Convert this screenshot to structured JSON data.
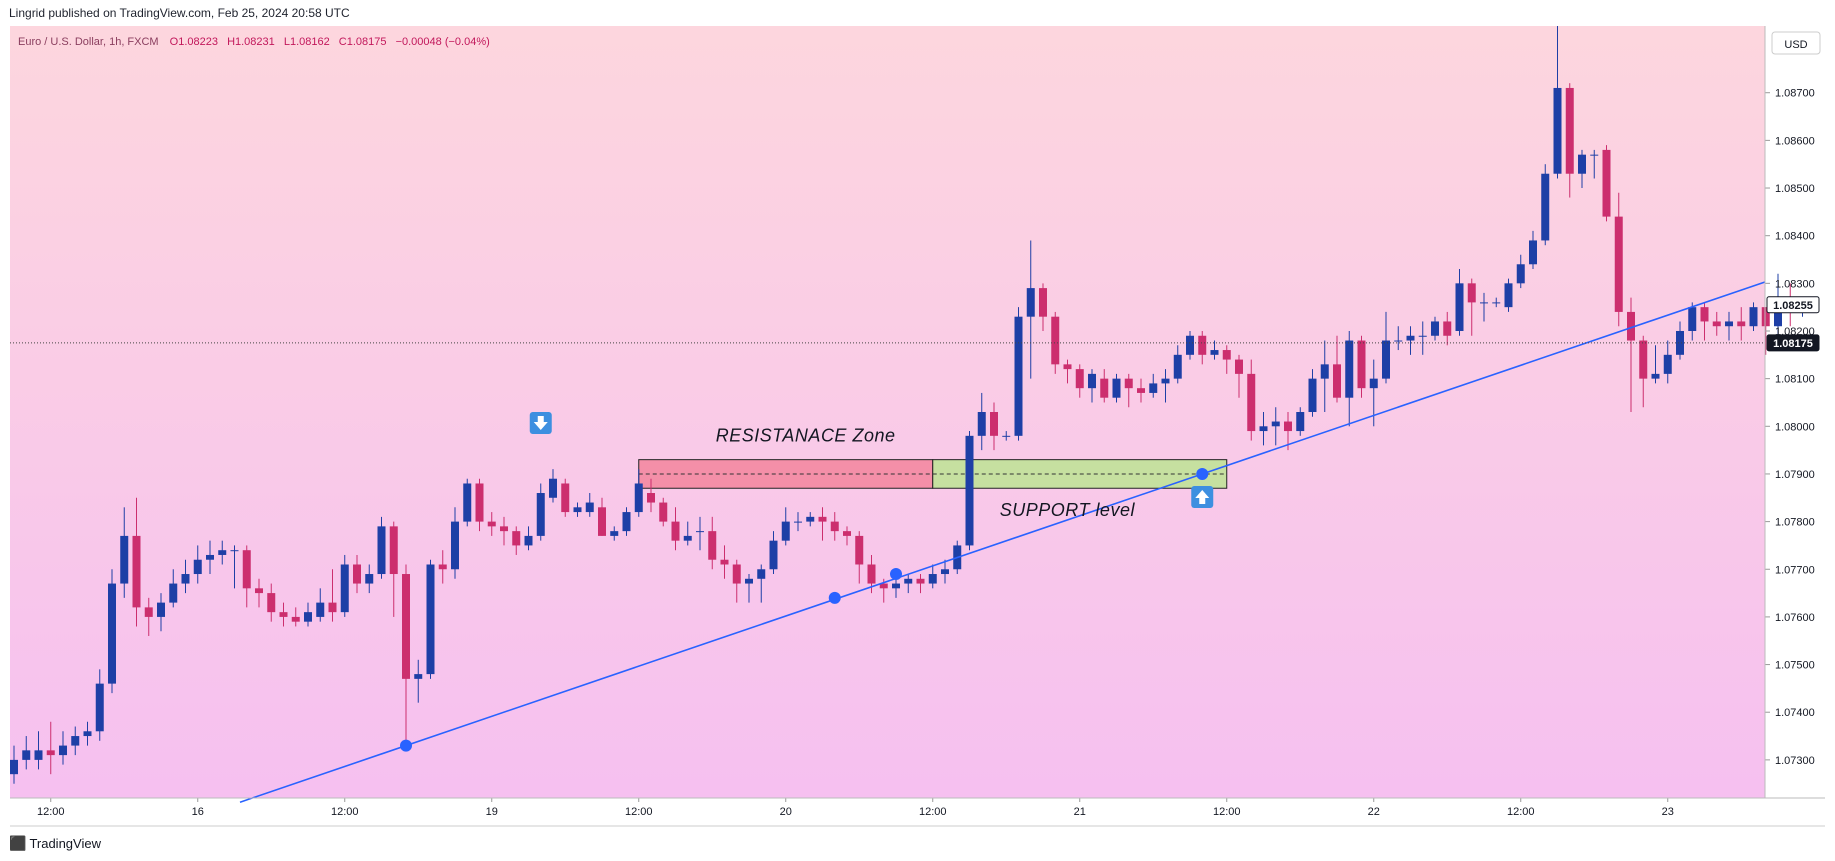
{
  "publisher": "Lingrid published on TradingView.com, Feb 25, 2024 20:58 UTC",
  "symbol_line": {
    "name": "Euro / U.S. Dollar, 1h, FXCM",
    "o": "O1.08223",
    "h": "H1.08231",
    "l": "L1.08162",
    "c": "C1.08175",
    "chg": "−0.00048 (−0.04%)"
  },
  "currency": "USD",
  "brand": "TradingView",
  "colors": {
    "up": "#1e3fa6",
    "down": "#cc2e6e",
    "trend": "#2962ff",
    "resistance_fill": "#f48fa8",
    "support_fill": "#c6e0a0",
    "bg_top": "#fdd6de",
    "bg_bottom": "#f6c0f0"
  },
  "chart_data": {
    "type": "candlestick",
    "ylim": [
      1.0722,
      1.0884
    ],
    "y_ticks": [
      "1.07300",
      "1.07400",
      "1.07500",
      "1.07600",
      "1.07700",
      "1.07800",
      "1.07900",
      "1.08000",
      "1.08100",
      "1.08200",
      "1.08300",
      "1.08400",
      "1.08500",
      "1.08600",
      "1.08700"
    ],
    "x_ticks": [
      "12:00",
      "16",
      "12:00",
      "19",
      "12:00",
      "20",
      "12:00",
      "21",
      "12:00",
      "22",
      "12:00",
      "23"
    ],
    "price_labels": [
      {
        "value": 1.08255,
        "text": "1.08255",
        "style": "outline"
      },
      {
        "value": 1.08175,
        "text": "1.08175",
        "style": "filled"
      }
    ],
    "current_price": 1.08175,
    "candles": [
      [
        1.0727,
        1.073,
        1.0725,
        1.0733
      ],
      [
        1.073,
        1.0732,
        1.0728,
        1.0735
      ],
      [
        1.073,
        1.0732,
        1.0728,
        1.0736
      ],
      [
        1.0732,
        1.0731,
        1.0727,
        1.0738
      ],
      [
        1.0731,
        1.0733,
        1.0729,
        1.0736
      ],
      [
        1.0733,
        1.0735,
        1.0731,
        1.0737
      ],
      [
        1.0735,
        1.0736,
        1.0733,
        1.0738
      ],
      [
        1.0736,
        1.0746,
        1.0734,
        1.0749
      ],
      [
        1.0746,
        1.0767,
        1.0744,
        1.077
      ],
      [
        1.0767,
        1.0777,
        1.0764,
        1.0783
      ],
      [
        1.0777,
        1.0762,
        1.0758,
        1.0785
      ],
      [
        1.0762,
        1.076,
        1.0756,
        1.0764
      ],
      [
        1.076,
        1.0763,
        1.0757,
        1.0765
      ],
      [
        1.0763,
        1.0767,
        1.0762,
        1.077
      ],
      [
        1.0767,
        1.0769,
        1.0765,
        1.0772
      ],
      [
        1.0769,
        1.0772,
        1.0767,
        1.0775
      ],
      [
        1.0772,
        1.0773,
        1.0769,
        1.0776
      ],
      [
        1.0773,
        1.0774,
        1.0771,
        1.0776
      ],
      [
        1.0774,
        1.0774,
        1.0766,
        1.0775
      ],
      [
        1.0774,
        1.0766,
        1.0762,
        1.0775
      ],
      [
        1.0766,
        1.0765,
        1.0762,
        1.0768
      ],
      [
        1.0765,
        1.0761,
        1.0759,
        1.0767
      ],
      [
        1.0761,
        1.076,
        1.0758,
        1.0763
      ],
      [
        1.076,
        1.0759,
        1.0758,
        1.0762
      ],
      [
        1.0759,
        1.0761,
        1.0758,
        1.0763
      ],
      [
        1.076,
        1.0763,
        1.0759,
        1.0766
      ],
      [
        1.0763,
        1.0761,
        1.0759,
        1.077
      ],
      [
        1.0761,
        1.0771,
        1.076,
        1.0773
      ],
      [
        1.0771,
        1.0767,
        1.0765,
        1.0773
      ],
      [
        1.0767,
        1.0769,
        1.0765,
        1.0771
      ],
      [
        1.0769,
        1.0779,
        1.0768,
        1.0781
      ],
      [
        1.0779,
        1.0769,
        1.076,
        1.078
      ],
      [
        1.0769,
        1.0747,
        1.0733,
        1.0771
      ],
      [
        1.0747,
        1.0748,
        1.0742,
        1.0751
      ],
      [
        1.0748,
        1.0771,
        1.0747,
        1.0772
      ],
      [
        1.0771,
        1.077,
        1.0767,
        1.0774
      ],
      [
        1.077,
        1.078,
        1.0768,
        1.0783
      ],
      [
        1.078,
        1.0788,
        1.0779,
        1.0789
      ],
      [
        1.0788,
        1.078,
        1.0778,
        1.0789
      ],
      [
        1.078,
        1.0779,
        1.0777,
        1.0782
      ],
      [
        1.0779,
        1.0778,
        1.0775,
        1.0781
      ],
      [
        1.0778,
        1.0775,
        1.0773,
        1.0779
      ],
      [
        1.0775,
        1.0777,
        1.0774,
        1.0779
      ],
      [
        1.0777,
        1.0786,
        1.0776,
        1.0788
      ],
      [
        1.0785,
        1.0789,
        1.0784,
        1.0791
      ],
      [
        1.0788,
        1.0782,
        1.0781,
        1.0789
      ],
      [
        1.0782,
        1.0783,
        1.0781,
        1.0784
      ],
      [
        1.0782,
        1.0784,
        1.0781,
        1.0786
      ],
      [
        1.0783,
        1.0777,
        1.0777,
        1.0785
      ],
      [
        1.0777,
        1.0778,
        1.0776,
        1.0779
      ],
      [
        1.0778,
        1.0782,
        1.0777,
        1.0783
      ],
      [
        1.0782,
        1.0788,
        1.0781,
        1.0791
      ],
      [
        1.0786,
        1.0784,
        1.0782,
        1.0789
      ],
      [
        1.0784,
        1.078,
        1.0779,
        1.0785
      ],
      [
        1.078,
        1.0776,
        1.0774,
        1.0783
      ],
      [
        1.0776,
        1.0777,
        1.0775,
        1.078
      ],
      [
        1.0778,
        1.0778,
        1.0774,
        1.0781
      ],
      [
        1.0778,
        1.0772,
        1.077,
        1.0781
      ],
      [
        1.0772,
        1.0771,
        1.0768,
        1.0775
      ],
      [
        1.0771,
        1.0767,
        1.0763,
        1.0772
      ],
      [
        1.0767,
        1.0768,
        1.0763,
        1.0769
      ],
      [
        1.0768,
        1.077,
        1.0763,
        1.0771
      ],
      [
        1.077,
        1.0776,
        1.0769,
        1.0778
      ],
      [
        1.0776,
        1.078,
        1.0775,
        1.0783
      ],
      [
        1.078,
        1.078,
        1.0778,
        1.0782
      ],
      [
        1.078,
        1.0781,
        1.0779,
        1.0782
      ],
      [
        1.0781,
        1.078,
        1.0776,
        1.0783
      ],
      [
        1.078,
        1.0778,
        1.0776,
        1.0782
      ],
      [
        1.0778,
        1.0777,
        1.0775,
        1.0779
      ],
      [
        1.0777,
        1.0771,
        1.0767,
        1.0778
      ],
      [
        1.0771,
        1.0767,
        1.0765,
        1.0773
      ],
      [
        1.0767,
        1.0766,
        1.0763,
        1.0768
      ],
      [
        1.0766,
        1.0767,
        1.0764,
        1.0768
      ],
      [
        1.0767,
        1.0768,
        1.0765,
        1.0769
      ],
      [
        1.0768,
        1.0767,
        1.0765,
        1.0769
      ],
      [
        1.0767,
        1.0769,
        1.0766,
        1.0771
      ],
      [
        1.0769,
        1.077,
        1.0767,
        1.0772
      ],
      [
        1.077,
        1.0775,
        1.0769,
        1.0776
      ],
      [
        1.0775,
        1.0798,
        1.0774,
        1.0799
      ],
      [
        1.0798,
        1.0803,
        1.0795,
        1.0807
      ],
      [
        1.0803,
        1.0798,
        1.0795,
        1.0805
      ],
      [
        1.0798,
        1.0798,
        1.0797,
        1.0799
      ],
      [
        1.0798,
        1.0823,
        1.0797,
        1.0825
      ],
      [
        1.0823,
        1.0829,
        1.081,
        1.0839
      ],
      [
        1.0829,
        1.0823,
        1.082,
        1.083
      ],
      [
        1.0823,
        1.0813,
        1.0811,
        1.0824
      ],
      [
        1.0813,
        1.0812,
        1.0809,
        1.0814
      ],
      [
        1.0812,
        1.0808,
        1.0806,
        1.0813
      ],
      [
        1.0808,
        1.0811,
        1.0805,
        1.0812
      ],
      [
        1.081,
        1.0806,
        1.0805,
        1.0812
      ],
      [
        1.0806,
        1.081,
        1.0805,
        1.0811
      ],
      [
        1.081,
        1.0808,
        1.0804,
        1.0811
      ],
      [
        1.0808,
        1.0807,
        1.0805,
        1.081
      ],
      [
        1.0807,
        1.0809,
        1.0806,
        1.0811
      ],
      [
        1.0809,
        1.081,
        1.0805,
        1.0812
      ],
      [
        1.081,
        1.0815,
        1.0809,
        1.0817
      ],
      [
        1.0815,
        1.0819,
        1.0814,
        1.082
      ],
      [
        1.0819,
        1.0815,
        1.0813,
        1.082
      ],
      [
        1.0815,
        1.0816,
        1.0814,
        1.0818
      ],
      [
        1.0816,
        1.0814,
        1.0811,
        1.0817
      ],
      [
        1.0814,
        1.0811,
        1.0806,
        1.0815
      ],
      [
        1.0811,
        1.0799,
        1.0797,
        1.0814
      ],
      [
        1.0799,
        1.08,
        1.0796,
        1.0803
      ],
      [
        1.08,
        1.0801,
        1.0796,
        1.0804
      ],
      [
        1.0801,
        1.0799,
        1.0795,
        1.0803
      ],
      [
        1.0799,
        1.0803,
        1.0798,
        1.0804
      ],
      [
        1.0803,
        1.081,
        1.0802,
        1.0812
      ],
      [
        1.081,
        1.0813,
        1.0803,
        1.0818
      ],
      [
        1.0813,
        1.0806,
        1.0805,
        1.0819
      ],
      [
        1.0806,
        1.0818,
        1.08,
        1.082
      ],
      [
        1.0818,
        1.0808,
        1.0806,
        1.0819
      ],
      [
        1.0808,
        1.081,
        1.08,
        1.0814
      ],
      [
        1.081,
        1.0818,
        1.0809,
        1.0824
      ],
      [
        1.0818,
        1.0818,
        1.0816,
        1.0821
      ],
      [
        1.0818,
        1.0819,
        1.0815,
        1.0821
      ],
      [
        1.0819,
        1.0819,
        1.0815,
        1.0822
      ],
      [
        1.0819,
        1.0822,
        1.0818,
        1.0823
      ],
      [
        1.0822,
        1.0819,
        1.0817,
        1.0824
      ],
      [
        1.082,
        1.083,
        1.0819,
        1.0833
      ],
      [
        1.083,
        1.0826,
        1.0819,
        1.0831
      ],
      [
        1.0826,
        1.0826,
        1.0822,
        1.0828
      ],
      [
        1.0826,
        1.0826,
        1.0825,
        1.0827
      ],
      [
        1.0825,
        1.083,
        1.0824,
        1.0831
      ],
      [
        1.083,
        1.0834,
        1.0829,
        1.0836
      ],
      [
        1.0834,
        1.0839,
        1.0833,
        1.0841
      ],
      [
        1.0839,
        1.0853,
        1.0838,
        1.0855
      ],
      [
        1.0853,
        1.0871,
        1.0852,
        1.0884
      ],
      [
        1.0871,
        1.0853,
        1.0848,
        1.0872
      ],
      [
        1.0853,
        1.0857,
        1.085,
        1.0858
      ],
      [
        1.0857,
        1.0857,
        1.0852,
        1.0858
      ],
      [
        1.0858,
        1.0844,
        1.0843,
        1.0859
      ],
      [
        1.0844,
        1.0824,
        1.0821,
        1.0849
      ],
      [
        1.0824,
        1.0818,
        1.0803,
        1.0827
      ],
      [
        1.0818,
        1.081,
        1.0804,
        1.0819
      ],
      [
        1.081,
        1.0811,
        1.0809,
        1.0817
      ],
      [
        1.0811,
        1.0815,
        1.0809,
        1.0818
      ],
      [
        1.0815,
        1.082,
        1.0814,
        1.0822
      ],
      [
        1.082,
        1.0825,
        1.0818,
        1.0826
      ],
      [
        1.0825,
        1.0822,
        1.0818,
        1.0826
      ],
      [
        1.0822,
        1.0821,
        1.0819,
        1.0824
      ],
      [
        1.0821,
        1.0822,
        1.0818,
        1.0824
      ],
      [
        1.0822,
        1.0821,
        1.0818,
        1.0825
      ],
      [
        1.0821,
        1.0825,
        1.082,
        1.0826
      ],
      [
        1.0825,
        1.0821,
        1.0815,
        1.0825
      ],
      [
        1.0821,
        1.0826,
        1.0819,
        1.0832
      ],
      [
        1.0826,
        1.0824,
        1.0821,
        1.083
      ],
      [
        1.0824,
        1.0824,
        1.0823,
        1.0826
      ]
    ],
    "x_values": [
      "Feb 15 09:00",
      "Feb 15 10:00",
      "Feb 15 11:00",
      "Feb 15 12:00",
      "Feb 15 13:00",
      "Feb 15 14:00",
      "Feb 15 15:00",
      "Feb 15 16:00",
      "Feb 15 17:00",
      "Feb 15 18:00",
      "Feb 15 19:00",
      "Feb 15 20:00",
      "Feb 15 21:00",
      "Feb 15 22:00",
      "Feb 15 23:00",
      "Feb 16 00:00",
      "Feb 16 01:00",
      "Feb 16 02:00",
      "Feb 16 03:00",
      "Feb 16 04:00",
      "Feb 16 05:00",
      "Feb 16 06:00",
      "Feb 16 07:00",
      "Feb 16 08:00",
      "Feb 16 09:00",
      "Feb 16 10:00",
      "Feb 16 11:00",
      "Feb 16 12:00",
      "Feb 16 13:00",
      "Feb 16 14:00",
      "Feb 16 15:00",
      "Feb 16 16:00",
      "Feb 16 17:00",
      "Feb 16 18:00",
      "Feb 16 19:00",
      "Feb 16 20:00",
      "Feb 16 21:00",
      "Feb 18 22:00",
      "Feb 18 23:00",
      "Feb 19 00:00",
      "Feb 19 01:00",
      "Feb 19 02:00",
      "Feb 19 03:00",
      "Feb 19 04:00",
      "Feb 19 05:00",
      "Feb 19 06:00",
      "Feb 19 07:00",
      "Feb 19 08:00",
      "Feb 19 09:00",
      "Feb 19 10:00",
      "Feb 19 11:00",
      "Feb 19 12:00",
      "Feb 19 13:00",
      "Feb 19 14:00",
      "Feb 19 15:00",
      "Feb 19 16:00",
      "Feb 19 17:00",
      "Feb 19 18:00",
      "Feb 19 19:00",
      "Feb 19 20:00",
      "Feb 19 21:00",
      "Feb 19 22:00",
      "Feb 19 23:00",
      "Feb 20 00:00",
      "Feb 20 01:00",
      "Feb 20 02:00",
      "Feb 20 03:00",
      "Feb 20 04:00",
      "Feb 20 05:00",
      "Feb 20 06:00",
      "Feb 20 07:00",
      "Feb 20 08:00",
      "Feb 20 09:00",
      "Feb 20 10:00",
      "Feb 20 11:00",
      "Feb 20 12:00",
      "Feb 20 13:00",
      "Feb 20 14:00",
      "Feb 20 15:00",
      "Feb 20 16:00",
      "Feb 20 17:00",
      "Feb 20 18:00",
      "Feb 20 19:00",
      "Feb 20 20:00",
      "Feb 20 21:00",
      "Feb 20 22:00",
      "Feb 20 23:00",
      "Feb 21 00:00",
      "Feb 21 01:00",
      "Feb 21 02:00",
      "Feb 21 03:00",
      "Feb 21 04:00",
      "Feb 21 05:00",
      "Feb 21 06:00",
      "Feb 21 07:00",
      "Feb 21 08:00",
      "Feb 21 09:00",
      "Feb 21 10:00",
      "Feb 21 11:00",
      "Feb 21 12:00",
      "Feb 21 13:00",
      "Feb 21 14:00",
      "Feb 21 15:00",
      "Feb 21 16:00",
      "Feb 21 17:00",
      "Feb 21 18:00",
      "Feb 21 19:00",
      "Feb 21 20:00",
      "Feb 21 21:00",
      "Feb 21 22:00",
      "Feb 21 23:00",
      "Feb 22 00:00",
      "Feb 22 01:00",
      "Feb 22 02:00",
      "Feb 22 03:00",
      "Feb 22 04:00",
      "Feb 22 05:00",
      "Feb 22 06:00",
      "Feb 22 07:00",
      "Feb 22 08:00",
      "Feb 22 09:00",
      "Feb 22 10:00",
      "Feb 22 11:00",
      "Feb 22 12:00",
      "Feb 22 13:00",
      "Feb 22 14:00",
      "Feb 22 15:00",
      "Feb 22 16:00",
      "Feb 22 17:00",
      "Feb 22 18:00",
      "Feb 22 19:00",
      "Feb 22 20:00",
      "Feb 22 21:00",
      "Feb 22 22:00",
      "Feb 22 23:00",
      "Feb 23 00:00",
      "Feb 23 01:00",
      "Feb 23 02:00",
      "Feb 23 03:00",
      "Feb 23 04:00",
      "Feb 23 05:00",
      "Feb 23 06:00",
      "Feb 23 07:00",
      "Feb 23 08:00",
      "Feb 23 09:00",
      "Feb 23 10:00"
    ],
    "annotations": {
      "resistance": {
        "label": "RESISTANACE Zone",
        "from": "Feb 19 12:00",
        "to": "Feb 20 12:00",
        "top": 1.0793,
        "bottom": 1.0787,
        "dashed_level": 1.079
      },
      "support": {
        "label": "SUPPORT level",
        "from": "Feb 20 12:00",
        "to": "Feb 21 12:00",
        "top": 1.0793,
        "bottom": 1.0787,
        "dashed_level": 1.079
      },
      "trendline": {
        "points": [
          [
            "Feb 16 17:00",
            1.0733
          ],
          [
            "Feb 20 04:00",
            1.0764
          ],
          [
            "Feb 20 09:00",
            1.0769
          ],
          [
            "Feb 21 10:00",
            1.079
          ]
        ]
      },
      "arrows": [
        {
          "direction": "down",
          "near": "resistance"
        },
        {
          "direction": "up",
          "near": "support"
        }
      ]
    }
  }
}
